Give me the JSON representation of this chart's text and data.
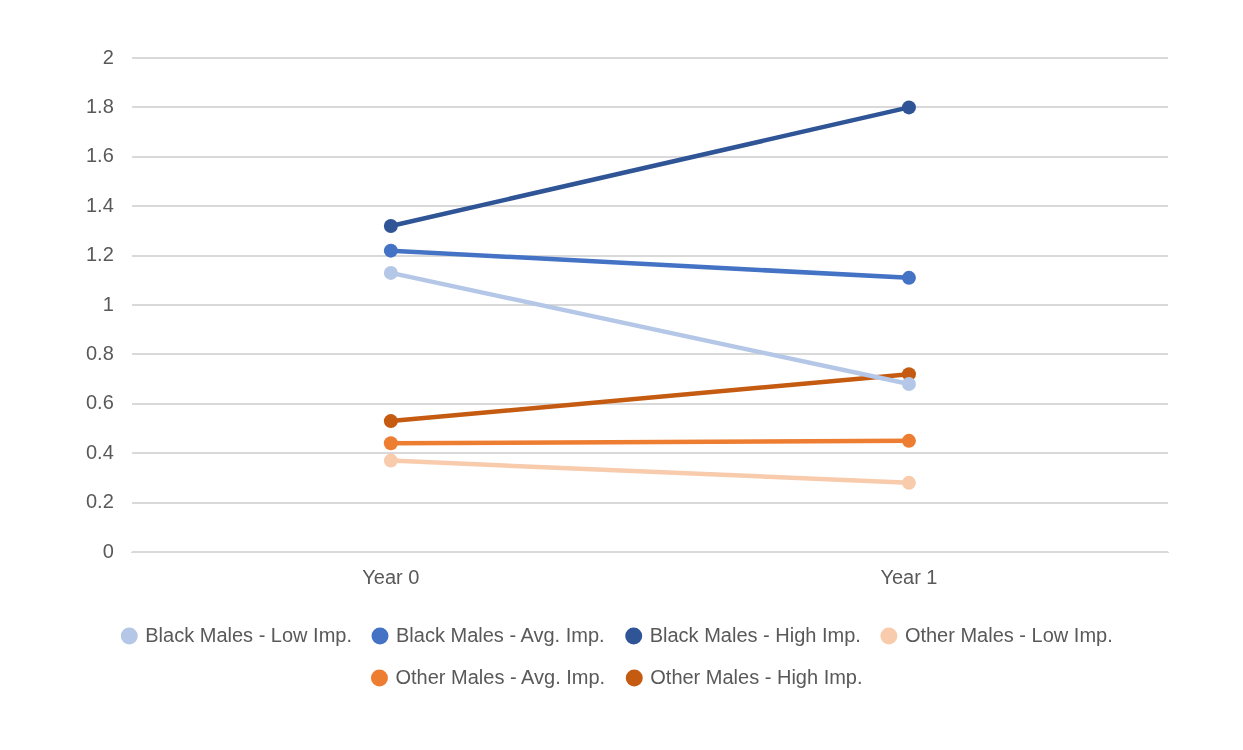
{
  "chart_data": {
    "type": "line",
    "categories": [
      "Year 0",
      "Year 1"
    ],
    "series": [
      {
        "name": "Black Males - Low Imp.",
        "color": "#b4c7e7",
        "values": [
          1.13,
          0.68
        ]
      },
      {
        "name": "Black Males - Avg. Imp.",
        "color": "#4472c4",
        "values": [
          1.22,
          1.11
        ]
      },
      {
        "name": "Black Males - High Imp.",
        "color": "#2f5597",
        "values": [
          1.32,
          1.8
        ]
      },
      {
        "name": "Other Males - Low Imp.",
        "color": "#f8cbad",
        "values": [
          0.37,
          0.28
        ]
      },
      {
        "name": "Other Males - Avg. Imp.",
        "color": "#ed7d31",
        "values": [
          0.44,
          0.45
        ]
      },
      {
        "name": "Other Males - High Imp.",
        "color": "#c55a11",
        "values": [
          0.53,
          0.72
        ]
      }
    ],
    "ylim": [
      0,
      2
    ],
    "yticks": [
      0,
      0.2,
      0.4,
      0.6,
      0.8,
      1,
      1.2,
      1.4,
      1.6,
      1.8,
      2
    ],
    "grid": "y",
    "legend": "bottom",
    "marker": "circle",
    "line_style": "solid"
  }
}
